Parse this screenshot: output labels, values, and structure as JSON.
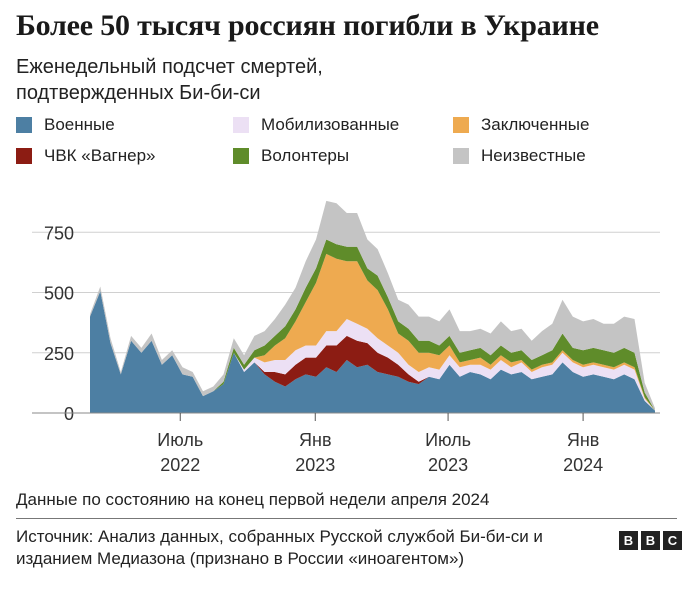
{
  "title": "Более 50 тысяч россиян погибли в Украине",
  "subtitle": "Еженедельный подсчет смертей, подтвержденных Би-би-си",
  "legend": [
    {
      "label": "Военные",
      "color": "#4d7fa3"
    },
    {
      "label": "Мобилизованные",
      "color": "#ece0f4"
    },
    {
      "label": "Заключенные",
      "color": "#eeaa50"
    },
    {
      "label": "ЧВК «Вагнер»",
      "color": "#8c1c13"
    },
    {
      "label": "Волонтеры",
      "color": "#5f8c2a"
    },
    {
      "label": "Неизвестные",
      "color": "#c4c4c4"
    }
  ],
  "footnote": "Данные по состоянию на конец первой недели апреля 2024",
  "source": "Источник: Анализ данных, собранных Русской службой Би-би-си и изданием Медиазона (признано в России «иноагентом»)",
  "logo": [
    "B",
    "B",
    "C"
  ],
  "chart_data": {
    "type": "area",
    "stacked": true,
    "ylim": [
      0,
      900
    ],
    "yticks": [
      0,
      250,
      500,
      750
    ],
    "ytick_labels": [
      "0",
      "250",
      "500",
      "750"
    ],
    "x_tick_labels": [
      {
        "date": "2022-07-01",
        "line1": "Июль",
        "line2": "2022"
      },
      {
        "date": "2023-01-01",
        "line1": "Янв",
        "line2": "2023"
      },
      {
        "date": "2023-07-01",
        "line1": "Июль",
        "line2": "2023"
      },
      {
        "date": "2024-01-01",
        "line1": "Янв",
        "line2": "2024"
      }
    ],
    "grid": true,
    "legend_position": "top",
    "x": [
      "2022-02-28",
      "2022-03-14",
      "2022-03-28",
      "2022-04-11",
      "2022-04-25",
      "2022-05-09",
      "2022-05-23",
      "2022-06-06",
      "2022-06-20",
      "2022-07-04",
      "2022-07-18",
      "2022-08-01",
      "2022-08-15",
      "2022-08-29",
      "2022-09-12",
      "2022-09-26",
      "2022-10-10",
      "2022-10-24",
      "2022-11-07",
      "2022-11-21",
      "2022-12-05",
      "2022-12-19",
      "2023-01-02",
      "2023-01-16",
      "2023-01-30",
      "2023-02-13",
      "2023-02-27",
      "2023-03-13",
      "2023-03-27",
      "2023-04-10",
      "2023-04-24",
      "2023-05-08",
      "2023-05-22",
      "2023-06-05",
      "2023-06-19",
      "2023-07-03",
      "2023-07-17",
      "2023-07-31",
      "2023-08-14",
      "2023-08-28",
      "2023-09-11",
      "2023-09-25",
      "2023-10-09",
      "2023-10-23",
      "2023-11-06",
      "2023-11-20",
      "2023-12-04",
      "2023-12-18",
      "2024-01-01",
      "2024-01-15",
      "2024-01-29",
      "2024-02-12",
      "2024-02-26",
      "2024-03-11",
      "2024-03-25",
      "2024-04-08"
    ],
    "series": [
      {
        "name": "Военные",
        "color": "#4d7fa3",
        "values": [
          400,
          505,
          290,
          160,
          300,
          250,
          300,
          200,
          240,
          160,
          150,
          70,
          90,
          120,
          250,
          170,
          210,
          160,
          130,
          110,
          140,
          160,
          150,
          190,
          170,
          220,
          190,
          200,
          170,
          160,
          150,
          130,
          120,
          150,
          140,
          200,
          150,
          170,
          160,
          140,
          180,
          160,
          170,
          140,
          150,
          160,
          210,
          170,
          150,
          160,
          150,
          140,
          160,
          140,
          50,
          10
        ]
      },
      {
        "name": "ЧВК «Вагнер»",
        "color": "#8c1c13",
        "values": [
          0,
          0,
          0,
          0,
          0,
          0,
          0,
          0,
          0,
          0,
          0,
          0,
          0,
          0,
          0,
          0,
          0,
          10,
          40,
          50,
          60,
          70,
          80,
          90,
          110,
          100,
          110,
          90,
          80,
          70,
          50,
          30,
          10,
          0,
          0,
          0,
          0,
          0,
          0,
          0,
          0,
          0,
          0,
          0,
          0,
          0,
          0,
          0,
          0,
          0,
          0,
          0,
          0,
          0,
          0,
          0
        ]
      },
      {
        "name": "Мобилизованные",
        "color": "#ece0f4",
        "values": [
          0,
          0,
          0,
          0,
          0,
          0,
          0,
          0,
          0,
          0,
          0,
          0,
          0,
          0,
          0,
          10,
          20,
          40,
          50,
          60,
          60,
          50,
          50,
          60,
          60,
          70,
          70,
          60,
          60,
          50,
          50,
          40,
          40,
          40,
          40,
          40,
          40,
          30,
          40,
          40,
          40,
          30,
          40,
          30,
          40,
          40,
          40,
          40,
          40,
          40,
          40,
          40,
          40,
          40,
          10,
          0
        ]
      },
      {
        "name": "Заключенные",
        "color": "#eeaa50",
        "values": [
          0,
          0,
          0,
          0,
          0,
          0,
          0,
          0,
          0,
          0,
          0,
          0,
          0,
          0,
          0,
          0,
          0,
          30,
          60,
          90,
          120,
          180,
          260,
          320,
          300,
          240,
          260,
          200,
          200,
          150,
          80,
          100,
          80,
          60,
          60,
          40,
          20,
          20,
          30,
          20,
          20,
          20,
          10,
          10,
          10,
          10,
          10,
          10,
          10,
          10,
          10,
          10,
          10,
          10,
          5,
          0
        ]
      },
      {
        "name": "Волонтеры",
        "color": "#5f8c2a",
        "values": [
          0,
          0,
          0,
          0,
          0,
          0,
          0,
          0,
          0,
          0,
          0,
          0,
          0,
          10,
          20,
          20,
          30,
          40,
          40,
          50,
          50,
          60,
          60,
          60,
          60,
          60,
          60,
          50,
          60,
          50,
          50,
          50,
          50,
          50,
          40,
          40,
          40,
          40,
          40,
          40,
          40,
          40,
          40,
          40,
          40,
          50,
          70,
          50,
          60,
          60,
          60,
          60,
          60,
          60,
          20,
          0
        ]
      },
      {
        "name": "Неизвестные",
        "color": "#c4c4c4",
        "values": [
          10,
          20,
          20,
          10,
          20,
          20,
          30,
          20,
          20,
          30,
          20,
          20,
          20,
          30,
          40,
          40,
          60,
          60,
          70,
          90,
          90,
          110,
          120,
          160,
          170,
          140,
          140,
          120,
          110,
          100,
          90,
          100,
          100,
          100,
          100,
          110,
          90,
          80,
          80,
          90,
          100,
          90,
          90,
          80,
          100,
          110,
          140,
          130,
          120,
          120,
          110,
          120,
          130,
          140,
          40,
          10
        ]
      }
    ]
  }
}
